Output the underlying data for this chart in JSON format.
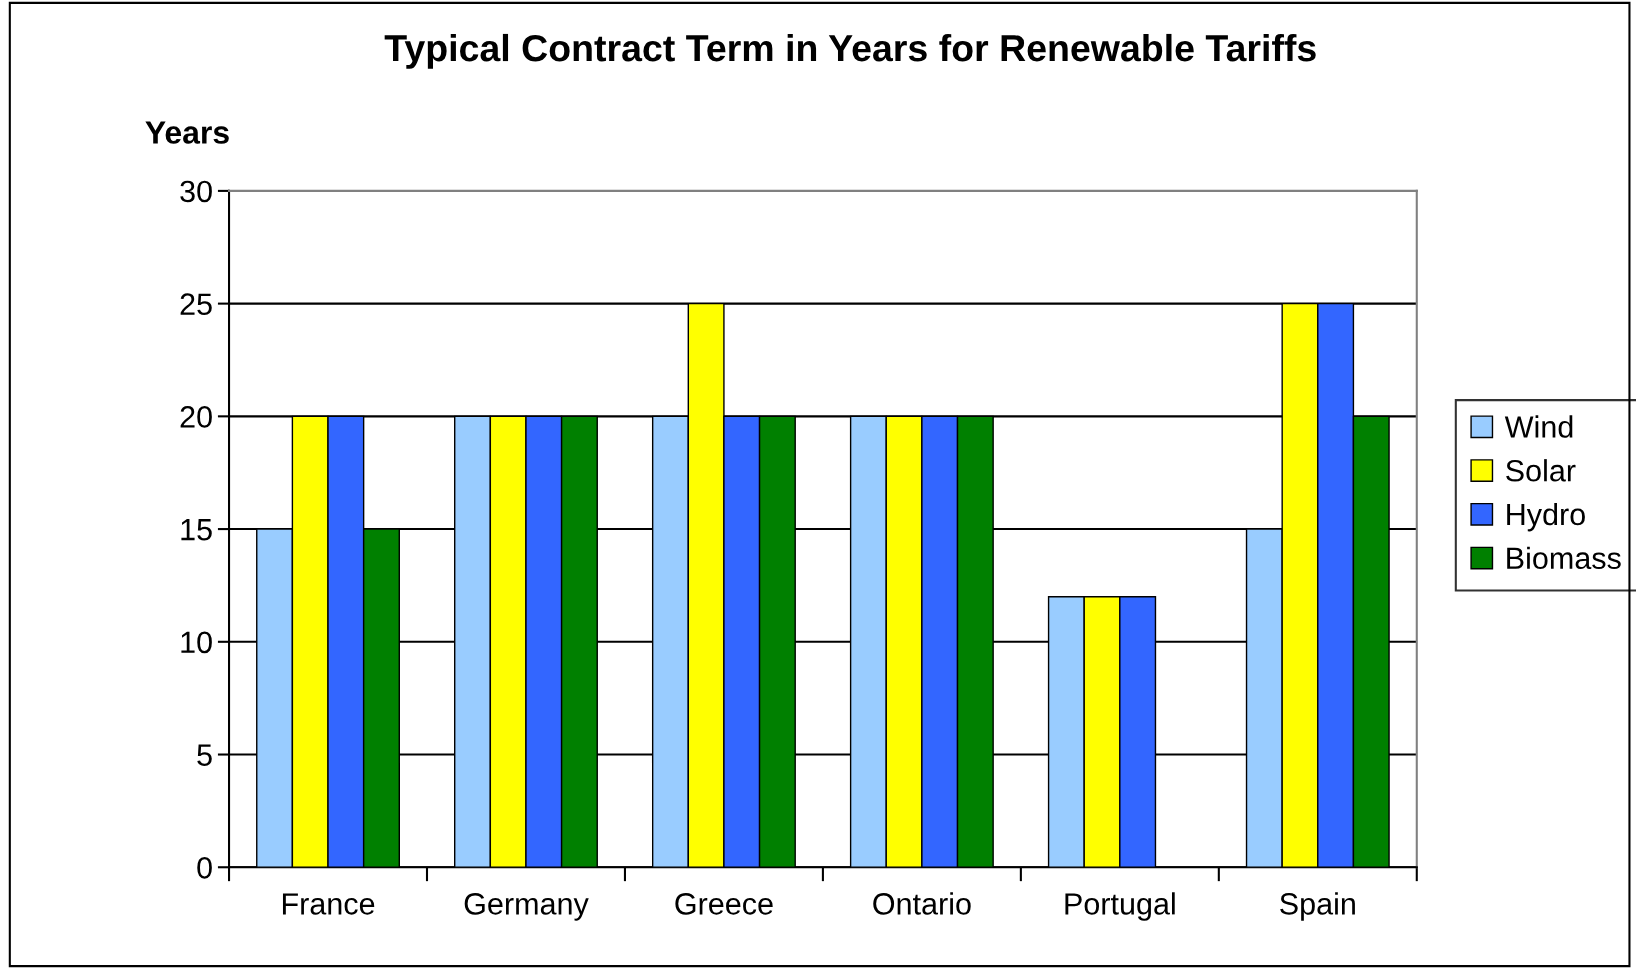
{
  "chart_data": {
    "type": "bar",
    "title": "Typical Contract Term in Years for Renewable Tariffs",
    "ylabel": "Years",
    "categories": [
      "France",
      "Germany",
      "Greece",
      "Ontario",
      "Portugal",
      "Spain"
    ],
    "series": [
      {
        "name": "Wind",
        "color": "#99ccff",
        "values": [
          15,
          20,
          20,
          20,
          12,
          15
        ]
      },
      {
        "name": "Solar",
        "color": "#ffff00",
        "values": [
          20,
          20,
          25,
          20,
          12,
          25
        ]
      },
      {
        "name": "Hydro",
        "color": "#3366ff",
        "values": [
          20,
          20,
          20,
          20,
          12,
          25
        ]
      },
      {
        "name": "Biomass",
        "color": "#008000",
        "values": [
          15,
          20,
          20,
          20,
          null,
          20
        ]
      }
    ],
    "ylim": [
      0,
      30
    ],
    "yticks": [
      0,
      5,
      10,
      15,
      20,
      25,
      30
    ],
    "grid": "y",
    "legend": "right"
  }
}
